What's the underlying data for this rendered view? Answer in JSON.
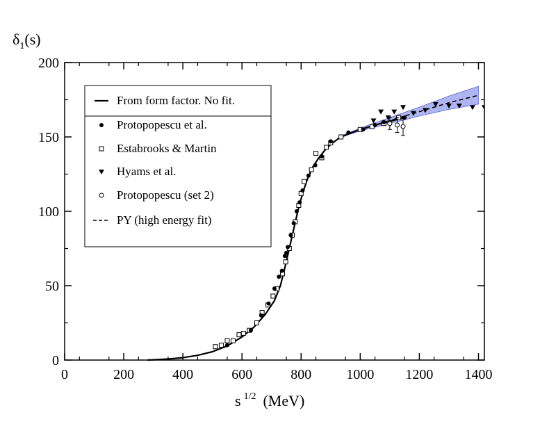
{
  "chart_data": {
    "type": "scatter",
    "title": "",
    "ylabel_main": "δ",
    "ylabel_sub": "1",
    "ylabel_rest": "(s)",
    "xlabel_main": "s",
    "xlabel_sup": "1/2",
    "xlabel_unit": "(MeV)",
    "xlim": [
      0,
      1420
    ],
    "ylim": [
      0,
      200
    ],
    "x_ticks": [
      0,
      200,
      400,
      600,
      800,
      1000,
      1200,
      1400
    ],
    "y_ticks": [
      0,
      50,
      100,
      150,
      200
    ],
    "x_tick_labels": [
      "0",
      "200",
      "400",
      "600",
      "800",
      "1000",
      "1200",
      "1400"
    ],
    "y_tick_labels": [
      "0",
      "50",
      "100",
      "150",
      "200"
    ],
    "grid": false,
    "legend_position": "upper-left",
    "legend": [
      {
        "label": "From form factor. No fit.",
        "marker": "solid-line"
      },
      {
        "label": "Protopopescu et al.",
        "marker": "filled-circle"
      },
      {
        "label": "Estabrooks & Martin",
        "marker": "open-square"
      },
      {
        "label": "Hyams et al.",
        "marker": "filled-triangle-down"
      },
      {
        "label": "Protopopescu (set 2)",
        "marker": "open-circle"
      },
      {
        "label": "PY (high energy fit)",
        "marker": "dashed-line"
      }
    ],
    "series": [
      {
        "name": "From form factor. No fit.",
        "style": "solid-line",
        "points": [
          [
            280,
            0
          ],
          [
            300,
            0.2
          ],
          [
            350,
            0.7
          ],
          [
            400,
            1.6
          ],
          [
            450,
            3.2
          ],
          [
            500,
            5.6
          ],
          [
            550,
            9.5
          ],
          [
            600,
            15.5
          ],
          [
            640,
            22
          ],
          [
            680,
            31
          ],
          [
            710,
            40
          ],
          [
            730,
            50
          ],
          [
            745,
            62
          ],
          [
            760,
            75
          ],
          [
            775,
            88
          ],
          [
            790,
            101
          ],
          [
            805,
            112
          ],
          [
            820,
            121
          ],
          [
            840,
            130
          ],
          [
            860,
            136
          ],
          [
            880,
            141
          ],
          [
            900,
            145
          ],
          [
            930,
            149.5
          ],
          [
            960,
            152
          ],
          [
            1000,
            155
          ],
          [
            1050,
            158
          ],
          [
            1100,
            160.5
          ],
          [
            1150,
            163
          ]
        ]
      },
      {
        "name": "Protopopescu et al.",
        "style": "filled-circle",
        "points": [
          [
            550,
            10
          ],
          [
            630,
            20
          ],
          [
            665,
            30
          ],
          [
            690,
            38
          ],
          [
            710,
            48
          ],
          [
            725,
            56
          ],
          [
            735,
            60
          ],
          [
            745,
            70
          ],
          [
            750,
            72
          ],
          [
            755,
            76
          ],
          [
            765,
            84
          ],
          [
            775,
            92
          ],
          [
            785,
            100
          ],
          [
            795,
            106
          ],
          [
            805,
            114
          ],
          [
            825,
            124
          ],
          [
            848,
            131
          ],
          [
            870,
            137
          ],
          [
            900,
            147
          ],
          [
            960,
            153
          ],
          [
            1010,
            155
          ],
          [
            1050,
            158
          ],
          [
            1080,
            160
          ],
          [
            1150,
            163
          ]
        ]
      },
      {
        "name": "Estabrooks & Martin",
        "style": "open-square",
        "points": [
          [
            510,
            9
          ],
          [
            530,
            10
          ],
          [
            550,
            13
          ],
          [
            570,
            13
          ],
          [
            590,
            17
          ],
          [
            605,
            18
          ],
          [
            625,
            20
          ],
          [
            650,
            25
          ],
          [
            668,
            32
          ],
          [
            688,
            37
          ],
          [
            705,
            43
          ],
          [
            718,
            48
          ],
          [
            737,
            58
          ],
          [
            748,
            66
          ],
          [
            760,
            75
          ],
          [
            770,
            84
          ],
          [
            780,
            93
          ],
          [
            792,
            104
          ],
          [
            800,
            112
          ],
          [
            810,
            120
          ],
          [
            835,
            128
          ],
          [
            850,
            139
          ],
          [
            870,
            136
          ],
          [
            885,
            143
          ],
          [
            900,
            146
          ],
          [
            935,
            150
          ],
          [
            1000,
            155
          ],
          [
            1040,
            157
          ],
          [
            1080,
            159
          ],
          [
            1130,
            163
          ]
        ]
      },
      {
        "name": "Hyams et al.",
        "style": "filled-triangle-down",
        "points": [
          [
            1045,
            161
          ],
          [
            1070,
            167
          ],
          [
            1095,
            163
          ],
          [
            1115,
            167
          ],
          [
            1145,
            170
          ],
          [
            1180,
            166
          ],
          [
            1220,
            168
          ],
          [
            1255,
            172
          ],
          [
            1300,
            171
          ],
          [
            1335,
            171
          ],
          [
            1380,
            170
          ],
          [
            1420,
            170
          ]
        ]
      },
      {
        "name": "Protopopescu (set 2)",
        "style": "open-circle",
        "points": [
          [
            1100,
            159
          ],
          [
            1125,
            158
          ],
          [
            1145,
            157
          ]
        ],
        "error": [
          4,
          5,
          6
        ]
      },
      {
        "name": "PY (high energy fit)",
        "style": "dashed-line",
        "band": true,
        "points": [
          [
            930,
            150
          ],
          [
            1000,
            155
          ],
          [
            1050,
            158
          ],
          [
            1100,
            161
          ],
          [
            1150,
            164
          ],
          [
            1200,
            167
          ],
          [
            1250,
            170
          ],
          [
            1300,
            173
          ],
          [
            1350,
            175.5
          ],
          [
            1400,
            178
          ]
        ],
        "band_half_width": [
          [
            930,
            0.5
          ],
          [
            1000,
            1
          ],
          [
            1100,
            2
          ],
          [
            1200,
            3
          ],
          [
            1300,
            4.5
          ],
          [
            1400,
            6
          ]
        ]
      }
    ]
  }
}
